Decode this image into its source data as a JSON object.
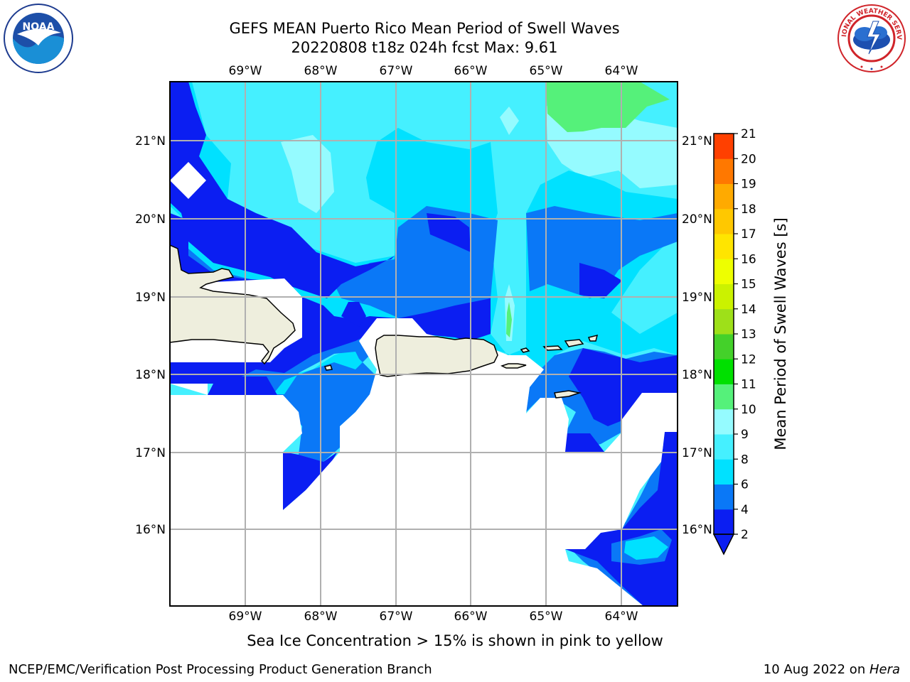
{
  "header": {
    "title_line1": "GEFS MEAN Puerto Rico Mean Period of Swell Waves",
    "title_line2": "20220808 t18z 024h fcst   Max: 9.61"
  },
  "map": {
    "lon_labels": [
      "69°W",
      "68°W",
      "67°W",
      "66°W",
      "65°W",
      "64°W"
    ],
    "lat_labels": [
      "21°N",
      "20°N",
      "19°N",
      "18°N",
      "17°N",
      "16°N"
    ],
    "land_color": "#eeeedd",
    "grid_color": "#b0b0b0"
  },
  "colorbar": {
    "title": "Mean Period of Swell Waves [s]",
    "tick_labels": [
      "2",
      "4",
      "6",
      "8",
      "9",
      "10",
      "11",
      "12",
      "13",
      "14",
      "15",
      "16",
      "17",
      "18",
      "19",
      "20",
      "21"
    ],
    "colors": [
      "#0b1ef2",
      "#0a78f7",
      "#00e1ff",
      "#45f0ff",
      "#95fbff",
      "#55f17a",
      "#00e000",
      "#44d12a",
      "#9ee019",
      "#cbf200",
      "#eeff00",
      "#ffe500",
      "#ffc800",
      "#ffaa00",
      "#ff7800",
      "#ff4000",
      "#ff1100",
      "#ff0000"
    ],
    "under_color": "#0b1ef2"
  },
  "footer": {
    "note": "Sea Ice Concentration > 15% is shown in pink to yellow",
    "left": "NCEP/EMC/Verification Post Processing Product Generation Branch",
    "right_date": "10 Aug 2022 on ",
    "right_host": "Hera"
  },
  "logos": {
    "noaa": "noaa-logo",
    "nws": "national-weather-service-logo"
  }
}
